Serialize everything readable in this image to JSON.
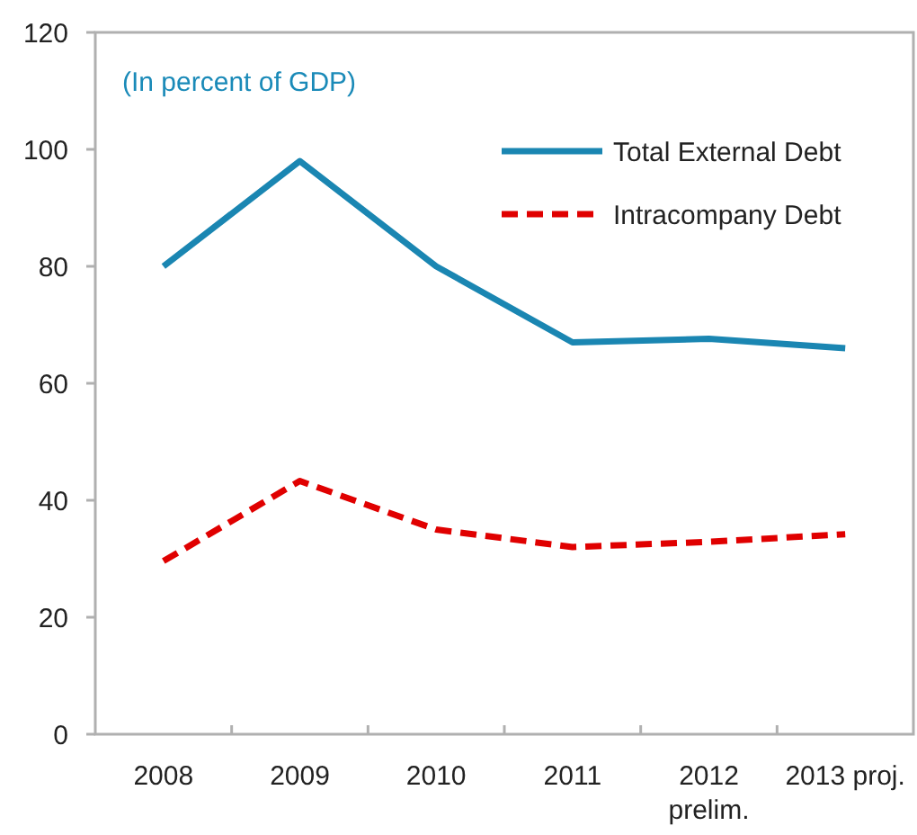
{
  "chart_data": {
    "type": "line",
    "subtitle": "(In percent of GDP)",
    "categories": [
      "2008",
      "2009",
      "2010",
      "2011",
      "2012\nprelim.",
      "2013 proj."
    ],
    "series": [
      {
        "name": "Total External Debt",
        "color": "#1a86b2",
        "line_style": "solid",
        "values": [
          80,
          98,
          80,
          67,
          67.6,
          66
        ]
      },
      {
        "name": "Intracompany Debt",
        "color": "#e00000",
        "line_style": "dashed",
        "values": [
          29.6,
          43.3,
          35,
          32,
          32.9,
          34.2
        ]
      }
    ],
    "ylim": [
      0,
      120
    ],
    "yticks": [
      0,
      20,
      40,
      60,
      80,
      100,
      120
    ],
    "grid": false,
    "legend": "top right",
    "marker": "none"
  }
}
